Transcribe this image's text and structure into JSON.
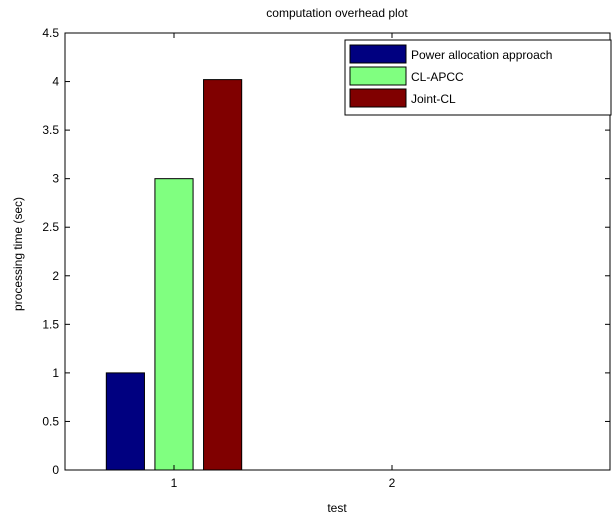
{
  "chart_data": {
    "type": "bar",
    "title": "computation overhead plot",
    "xlabel": "test",
    "ylabel": "processing time (sec)",
    "categories": [
      "1",
      "2"
    ],
    "ylim": [
      0,
      4.5
    ],
    "yticks": [
      "0",
      "0.5",
      "1",
      "1.5",
      "2",
      "2.5",
      "3",
      "3.5",
      "4",
      "4.5"
    ],
    "grid": false,
    "legend_position": "top-right",
    "series": [
      {
        "name": "Power allocation approach",
        "color": "#000080",
        "values": [
          1.0,
          0
        ]
      },
      {
        "name": "CL-APCC",
        "color": "#80FF80",
        "values": [
          3.0,
          0
        ]
      },
      {
        "name": "Joint-CL",
        "color": "#800000",
        "values": [
          4.02,
          0
        ]
      }
    ]
  }
}
